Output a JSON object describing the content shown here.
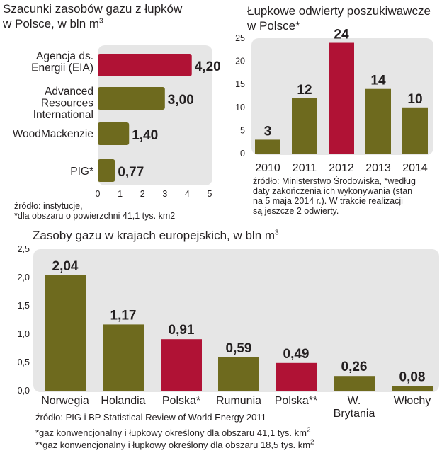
{
  "colors": {
    "olive": "#6e6a1e",
    "red": "#b01235",
    "panel": "#e6e6e6",
    "highlight": "#b01235",
    "text": "#231f20"
  },
  "chart_data": [
    {
      "type": "bar",
      "orientation": "horizontal",
      "title_main": "Szacunki zasobów gazu z łupków",
      "title_line2": "w Polsce, w bln m",
      "title_sup": "3",
      "categories": [
        "Agencja ds.\nEnergii (EIA)",
        "Advanced\nResources\nInternational",
        "WoodMackenzie",
        "PIG*"
      ],
      "values": [
        4.2,
        3.0,
        1.4,
        0.77
      ],
      "value_labels": [
        "4,20",
        "3,00",
        "1,40",
        "0,77"
      ],
      "highlight": [
        true,
        false,
        false,
        false
      ],
      "xlim": [
        0,
        5
      ],
      "xticks": [
        "0",
        "1",
        "2",
        "3",
        "4",
        "5"
      ],
      "notes": [
        "źródło: instytucje,",
        "*dla obszaru o powierzchni 41,1 tys. km2"
      ]
    },
    {
      "type": "bar",
      "orientation": "vertical",
      "title_main": "Łupkowe odwierty poszukiwawcze",
      "title_line2": "w Polsce*",
      "categories": [
        "2010",
        "2011",
        "2012",
        "2013",
        "2014"
      ],
      "values": [
        3,
        12,
        24,
        14,
        10
      ],
      "value_labels": [
        "3",
        "12",
        "24",
        "14",
        "10"
      ],
      "highlight": [
        false,
        false,
        true,
        false,
        false
      ],
      "ylim": [
        0,
        25
      ],
      "yticks": [
        "0",
        "5",
        "10",
        "15",
        "20",
        "25"
      ],
      "notes": [
        "źródło: Ministerstwo Środowiska, *według",
        "daty zakończenia ich wykonywania (stan",
        "na 5 maja 2014 r.). W trakcie realizacji",
        "są jeszcze 2 odwierty."
      ]
    },
    {
      "type": "bar",
      "orientation": "vertical",
      "title_main": "Zasoby gazu w krajach europejskich, w bln m",
      "title_sup": "3",
      "categories": [
        "Norwegia",
        "Holandia",
        "Polska*",
        "Rumunia",
        "Polska**",
        "W.\nBrytania",
        "Włochy"
      ],
      "values": [
        2.04,
        1.17,
        0.91,
        0.59,
        0.49,
        0.26,
        0.08
      ],
      "value_labels": [
        "2,04",
        "1,17",
        "0,91",
        "0,59",
        "0,49",
        "0,26",
        "0,08"
      ],
      "bar_colors": [
        "olive",
        "olive",
        "red",
        "olive",
        "red",
        "olive",
        "olive"
      ],
      "label_highlight": [
        true,
        false,
        false,
        false,
        false,
        false,
        false
      ],
      "ylim": [
        0,
        2.5
      ],
      "yticks": [
        "0,0",
        "0,5",
        "1,0",
        "1,5",
        "2,0",
        "2,5"
      ],
      "notes": {
        "source": "źródło: PIG i BP Statistical Review of World Energy 2011",
        "n1": "*gaz konwencjonalny i łupkowy określony dla obszaru 41,1 tys. km",
        "n2": "**gaz konwencjonalny i łupkowy określony dla obszaru 18,5 tys. km",
        "sup": "2"
      }
    }
  ]
}
